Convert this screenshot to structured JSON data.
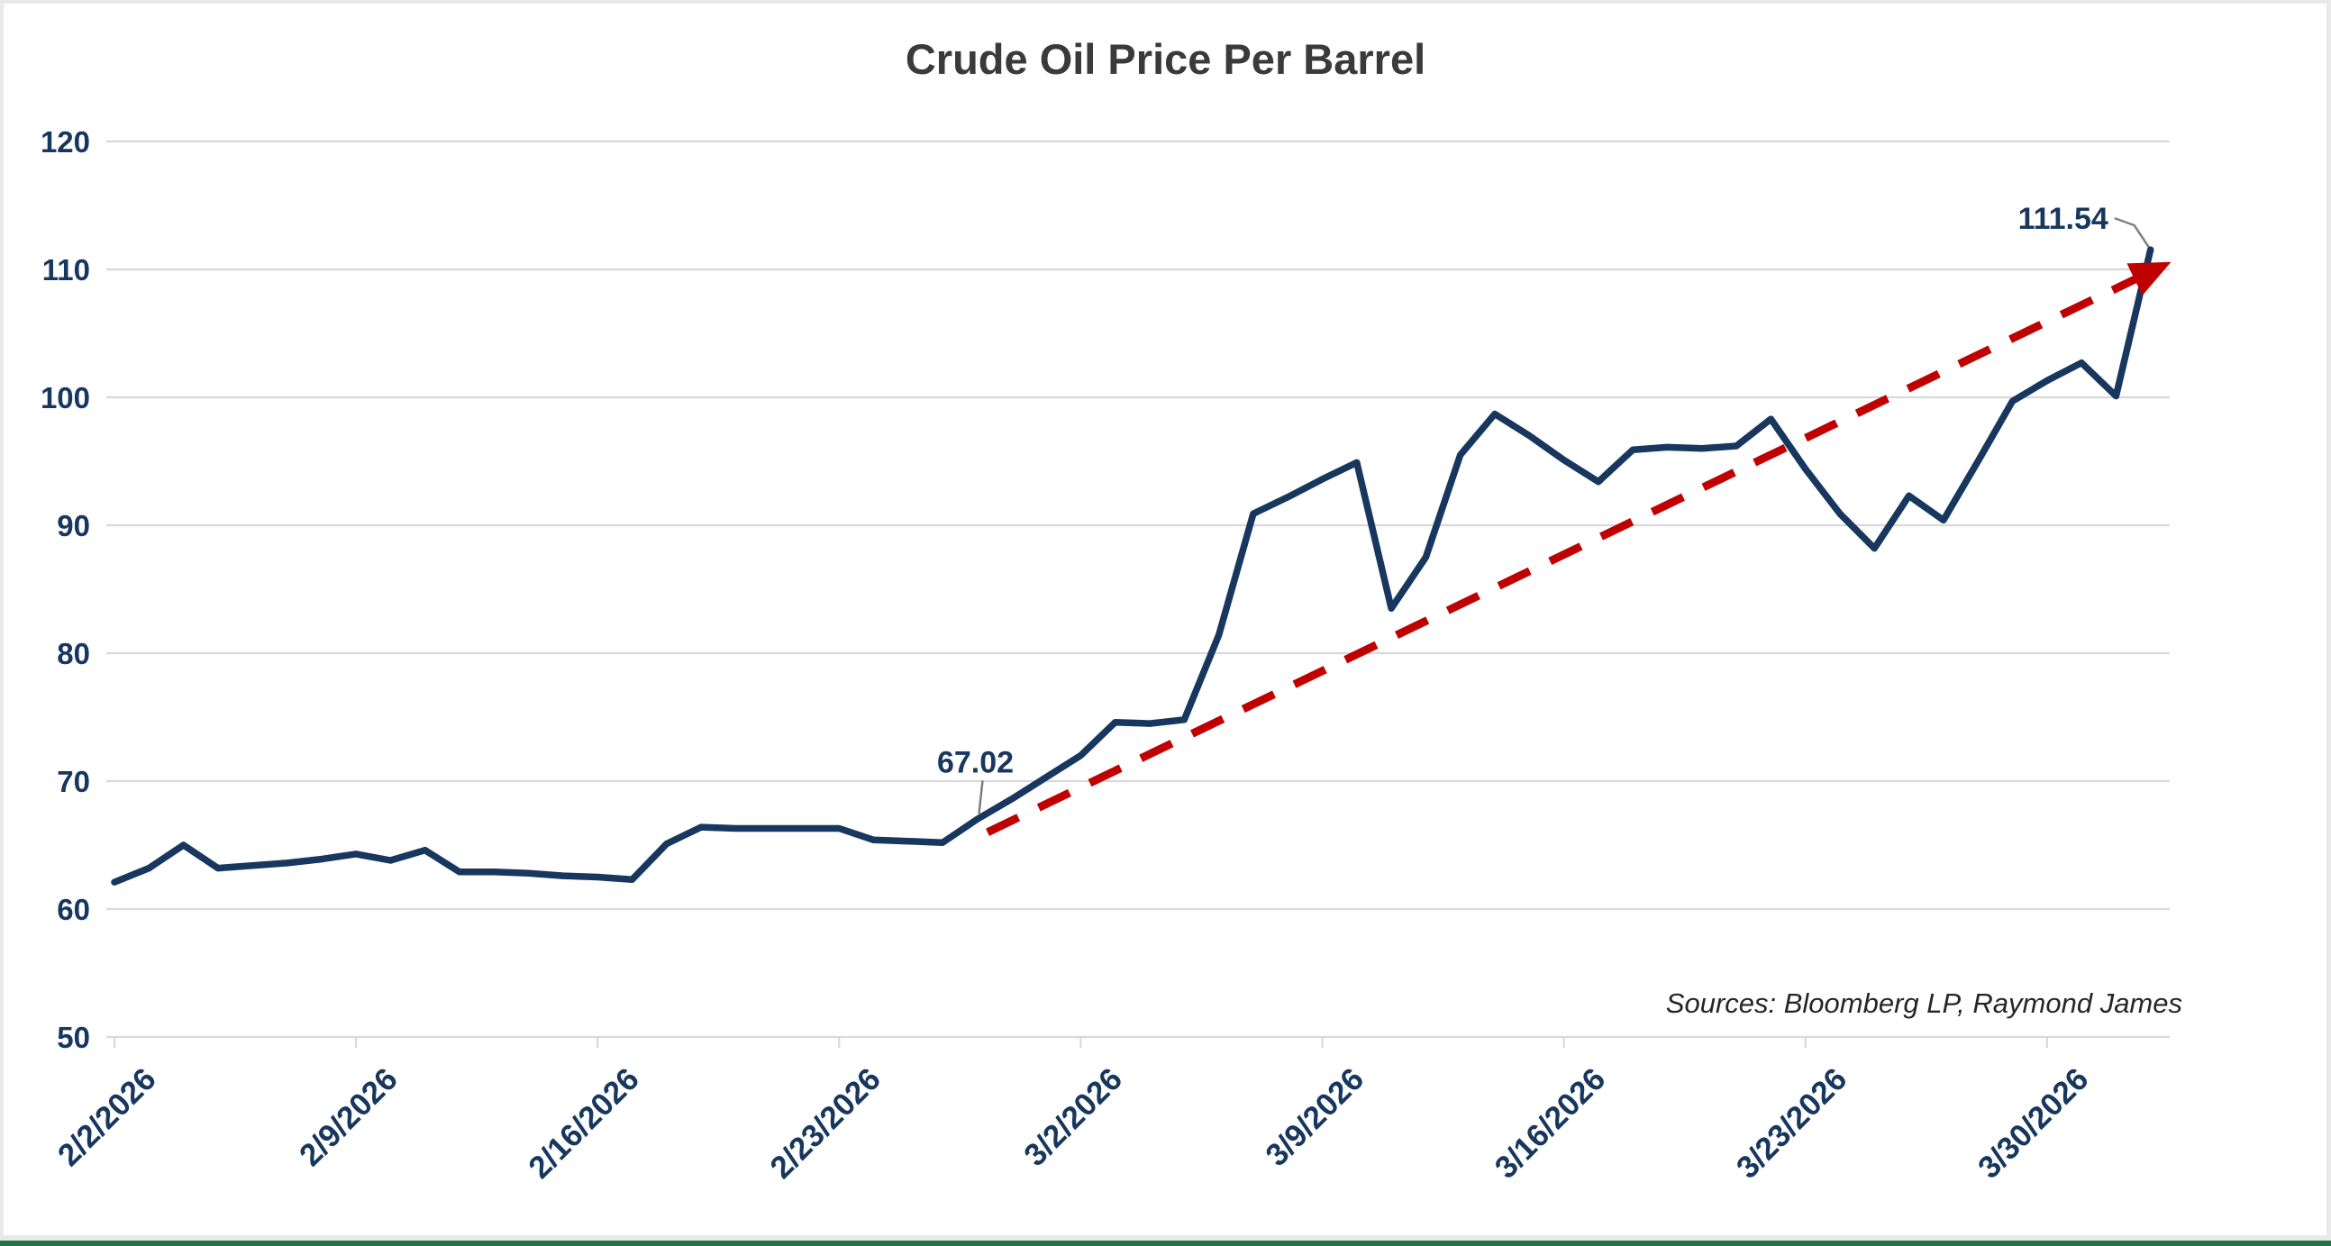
{
  "window": {
    "background": "#ffffff",
    "border_color": "#e9e9e9",
    "bottom_accent_color": "#217346"
  },
  "chart_data": {
    "type": "line",
    "title": "Crude Oil Price Per Barrel",
    "source_note": "Sources: Bloomberg LP, Raymond James",
    "xlabel": "",
    "ylabel": "",
    "ylim": [
      50,
      120
    ],
    "y_ticks": [
      120,
      110,
      100,
      90,
      80,
      70,
      60,
      50
    ],
    "grid": "horizontal",
    "x_tick_labels": [
      "2/2/2026",
      "2/9/2026",
      "2/16/2026",
      "2/23/2026",
      "3/2/2026",
      "3/9/2026",
      "3/16/2026",
      "3/23/2026",
      "3/30/2026"
    ],
    "points_per_tick": 7,
    "series": [
      {
        "name": "crude-oil-price",
        "color": "#17375e",
        "values": [
          62.1,
          63.2,
          65.0,
          63.2,
          63.4,
          63.6,
          63.9,
          64.3,
          63.8,
          64.6,
          62.9,
          62.9,
          62.8,
          62.6,
          62.5,
          62.3,
          65.1,
          66.4,
          66.3,
          66.3,
          66.3,
          66.3,
          65.4,
          65.3,
          65.2,
          67.02,
          68.6,
          70.3,
          72.0,
          74.6,
          74.5,
          74.8,
          81.4,
          90.9,
          92.2,
          93.6,
          94.9,
          83.5,
          87.5,
          95.5,
          98.7,
          97.0,
          95.1,
          93.4,
          95.9,
          96.1,
          96.0,
          96.2,
          98.3,
          94.4,
          90.9,
          88.2,
          92.3,
          90.4,
          95.0,
          99.7,
          101.3,
          102.7,
          100.1,
          111.54
        ]
      }
    ],
    "trendline": {
      "color": "#c00000",
      "style": "dashed",
      "arrow": true,
      "start": {
        "index": 25.3,
        "value": 66.0
      },
      "end": {
        "index": 59.3,
        "value": 110.2
      }
    },
    "annotations": [
      {
        "text": "67.02",
        "index": 25,
        "value": 67.02
      },
      {
        "text": "111.54",
        "index": 59,
        "value": 111.54
      }
    ],
    "gridline_color": "#d9d9d9",
    "axis_label_color": "#17375e",
    "leader_line_color": "#7f7f7f"
  }
}
